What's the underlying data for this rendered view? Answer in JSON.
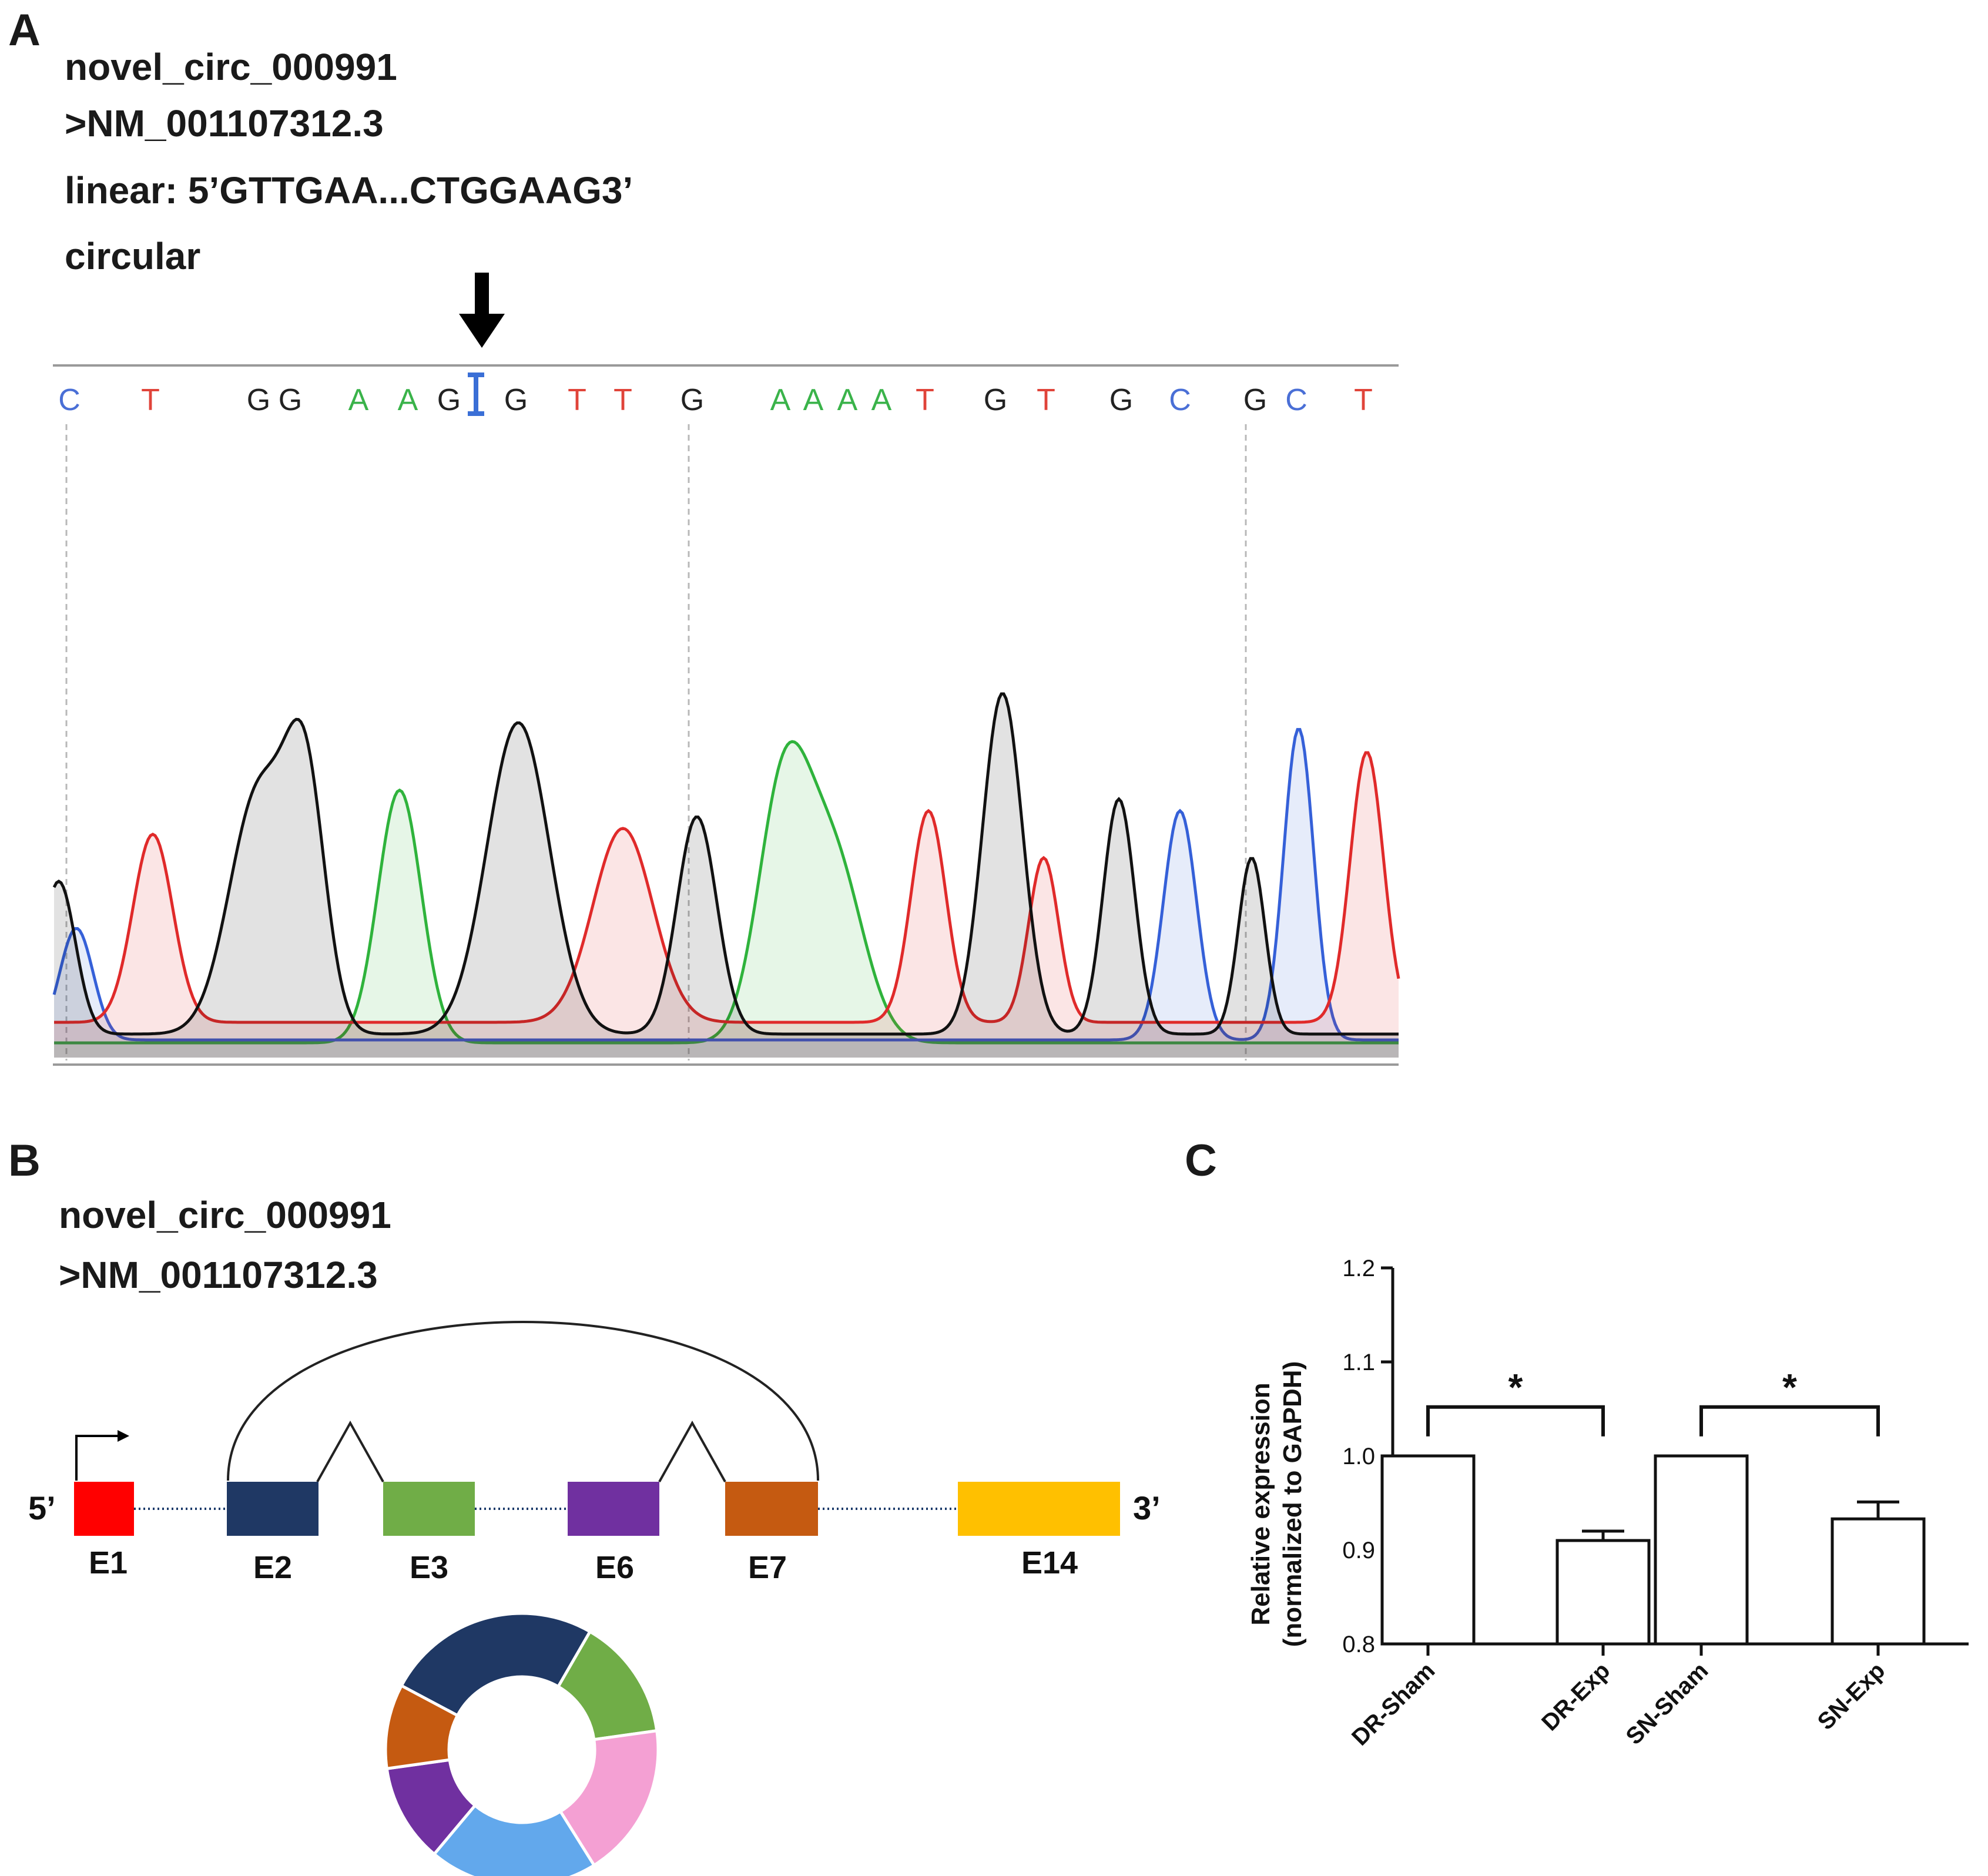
{
  "panel_a": {
    "letter": "A",
    "circ_id": "novel_circ_000991",
    "accession": ">NM_001107312.3",
    "linear_label": "linear: 5’GTTGAA...CTGGAAG3’",
    "circular_label": "circular",
    "bases": [
      {
        "text": "C",
        "color": "#4a6fd6"
      },
      {
        "text": "T",
        "color": "#e0443a"
      },
      {
        "text": "G",
        "color": "#222222"
      },
      {
        "text": "G",
        "color": "#222222"
      },
      {
        "text": "A",
        "color": "#3ab34a"
      },
      {
        "text": "A",
        "color": "#3ab34a"
      },
      {
        "text": "G",
        "color": "#222222"
      },
      {
        "text": "G",
        "color": "#222222"
      },
      {
        "text": "T",
        "color": "#e0443a"
      },
      {
        "text": "T",
        "color": "#e0443a"
      },
      {
        "text": "G",
        "color": "#222222"
      },
      {
        "text": "A",
        "color": "#3ab34a"
      },
      {
        "text": "A",
        "color": "#3ab34a"
      },
      {
        "text": "A",
        "color": "#3ab34a"
      },
      {
        "text": "A",
        "color": "#3ab34a"
      },
      {
        "text": "T",
        "color": "#e0443a"
      },
      {
        "text": "G",
        "color": "#222222"
      },
      {
        "text": "T",
        "color": "#e0443a"
      },
      {
        "text": "G",
        "color": "#222222"
      },
      {
        "text": "C",
        "color": "#4a6fd6"
      },
      {
        "text": "G",
        "color": "#222222"
      },
      {
        "text": "C",
        "color": "#4a6fd6"
      },
      {
        "text": "T",
        "color": "#e0443a"
      }
    ],
    "trace_colors": {
      "A": "#2fb33c",
      "C": "#3560d8",
      "G": "#111111",
      "T": "#e02a2a"
    }
  },
  "panel_b": {
    "letter": "B",
    "circ_id": "novel_circ_000991",
    "accession": ">NM_001107312.3",
    "five_prime": "5’",
    "three_prime": "3’",
    "exons": [
      {
        "label": "E1",
        "color": "#ff0000"
      },
      {
        "label": "E2",
        "color": "#1f3864"
      },
      {
        "label": "E3",
        "color": "#70ad47"
      },
      {
        "label": "E6",
        "color": "#7030a0"
      },
      {
        "label": "E7",
        "color": "#c55a11"
      },
      {
        "label": "E14",
        "color": "#ffc000"
      }
    ],
    "ring_colors": [
      "#1f3864",
      "#70ad47",
      "#f4a0d3",
      "#62a8ec",
      "#7030a0",
      "#c55a11"
    ]
  },
  "panel_c": {
    "letter": "C",
    "chart_data": {
      "type": "bar",
      "categories": [
        "DR-Sham",
        "DR-Exp",
        "SN-Sham",
        "SN-Exp"
      ],
      "values": [
        1.0,
        0.91,
        1.0,
        0.933
      ],
      "errors": [
        0.0,
        0.01,
        0.0,
        0.018
      ],
      "ylabel_line1": "Relative expression",
      "ylabel_line2": "(normalized to GAPDH)",
      "ylim": [
        0.8,
        1.2
      ],
      "ticks": [
        "0.8",
        "0.9",
        "1.0",
        "1.1",
        "1.2"
      ],
      "significance": [
        {
          "pair": [
            "DR-Sham",
            "DR-Exp"
          ],
          "label": "*"
        },
        {
          "pair": [
            "SN-Sham",
            "SN-Exp"
          ],
          "label": "*"
        }
      ]
    }
  }
}
